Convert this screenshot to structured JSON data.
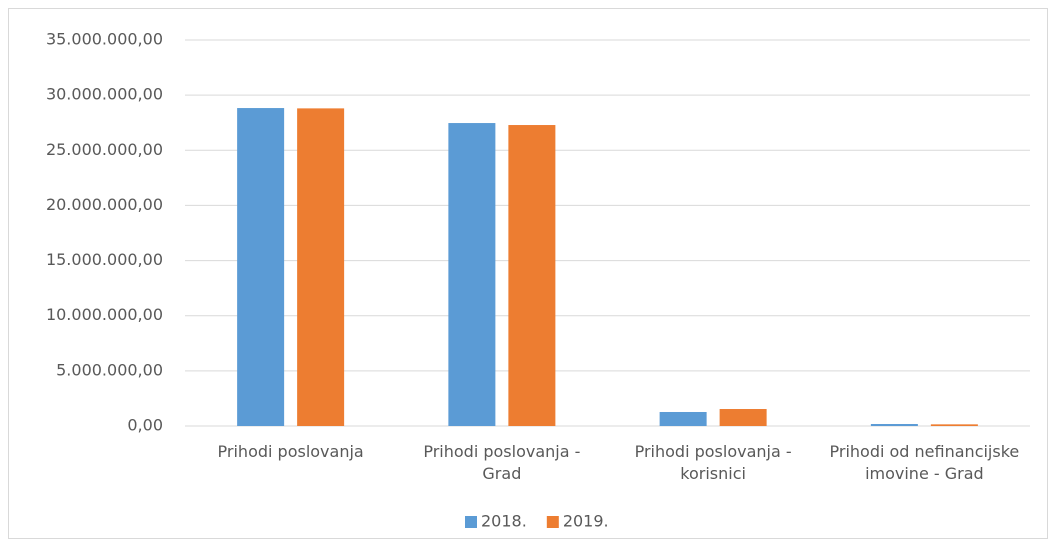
{
  "chart_data": {
    "type": "bar",
    "categories": [
      "Prihodi poslovanja",
      "Prihodi poslovanja - Grad",
      "Prihodi poslovanja - korisnici",
      "Prihodi od nefinancijske imovine - Grad"
    ],
    "series": [
      {
        "name": "2018.",
        "color": "#5b9bd5",
        "values": [
          28830000,
          27470000,
          1270000,
          180000
        ]
      },
      {
        "name": "2019.",
        "color": "#ed7d31",
        "values": [
          28800000,
          27290000,
          1540000,
          150000
        ]
      }
    ],
    "ylim": [
      0,
      35000000
    ],
    "yticks": [
      {
        "value": 0,
        "label": "0,00"
      },
      {
        "value": 5000000,
        "label": "5.000.000,00"
      },
      {
        "value": 10000000,
        "label": "10.000.000,00"
      },
      {
        "value": 15000000,
        "label": "15.000.000,00"
      },
      {
        "value": 20000000,
        "label": "20.000.000,00"
      },
      {
        "value": 25000000,
        "label": "25.000.000,00"
      },
      {
        "value": 30000000,
        "label": "30.000.000,00"
      },
      {
        "value": 35000000,
        "label": "35.000.000,00"
      }
    ],
    "grid": true,
    "legend": "bottom"
  }
}
